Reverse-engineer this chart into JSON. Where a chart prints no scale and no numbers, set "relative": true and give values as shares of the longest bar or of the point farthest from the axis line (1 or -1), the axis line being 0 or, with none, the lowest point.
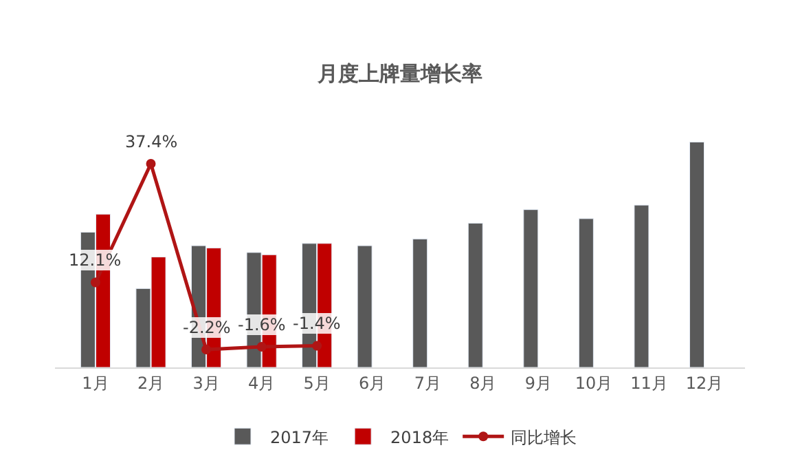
{
  "chart_data": [
    {
      "type": "bar",
      "title": "月度上牌量增长率",
      "relative": true,
      "legend": "bottom",
      "categories": [
        "1月",
        "2月",
        "3月",
        "4月",
        "5月",
        "6月",
        "7月",
        "8月",
        "9月",
        "10月",
        "11月",
        "12月"
      ],
      "series": [
        {
          "name": "2017年",
          "color": "#595959",
          "values": [
            0.6,
            0.35,
            0.54,
            0.51,
            0.55,
            0.54,
            0.57,
            0.64,
            0.7,
            0.66,
            0.72,
            1.0
          ]
        },
        {
          "name": "2018年",
          "color": "#c00000",
          "values": [
            0.68,
            0.49,
            0.53,
            0.5,
            0.55,
            null,
            null,
            null,
            null,
            null,
            null,
            null
          ]
        }
      ]
    },
    {
      "type": "line",
      "legend": "bottom",
      "marker": "circle",
      "tick_labels": false,
      "categories": [
        "1月",
        "2月",
        "3月",
        "4月",
        "5月",
        "6月",
        "7月",
        "8月",
        "9月",
        "10月",
        "11月",
        "12月"
      ],
      "series": [
        {
          "name": "同比增长",
          "color": "#b01515",
          "values": [
            12.1,
            37.4,
            -2.2,
            -1.6,
            -1.4,
            null,
            null,
            null,
            null,
            null,
            null,
            null
          ],
          "value_labels": [
            "12.1%",
            "37.4%",
            "-2.2%",
            "-1.6%",
            "-1.4%",
            null,
            null,
            null,
            null,
            null,
            null,
            null
          ]
        }
      ]
    }
  ]
}
